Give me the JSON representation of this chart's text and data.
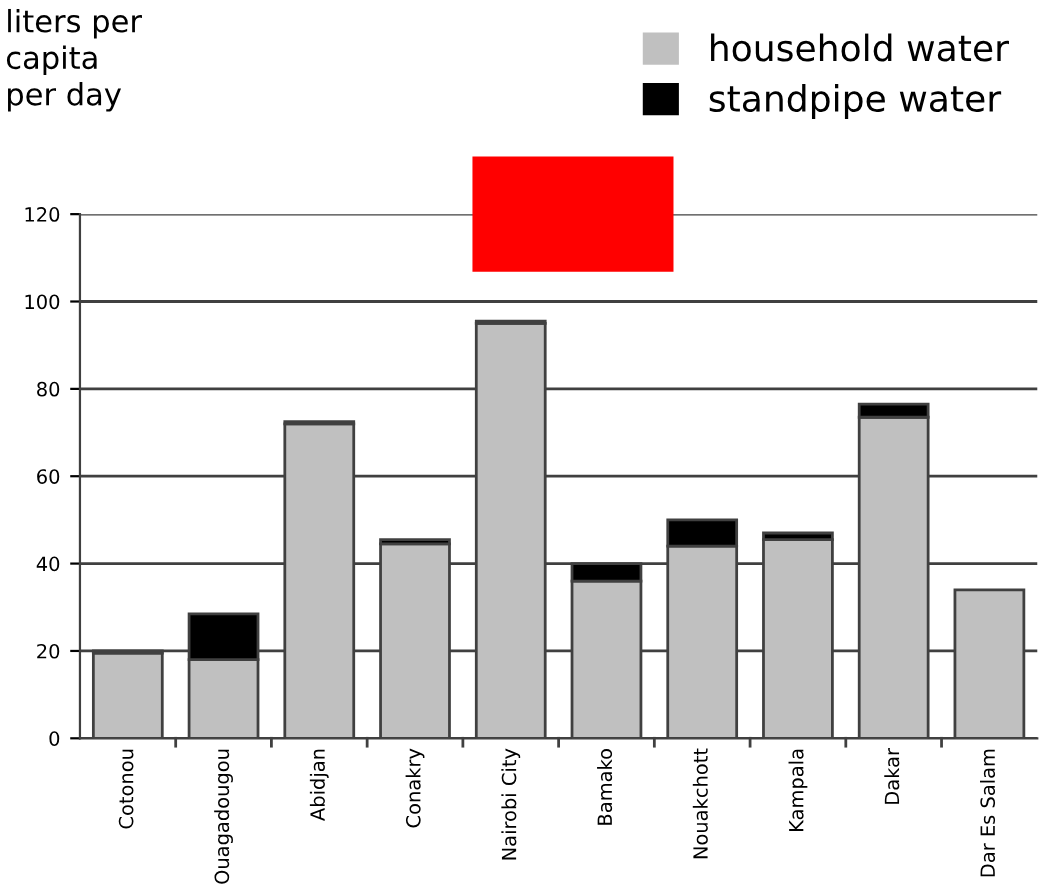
{
  "chart_data": {
    "type": "bar",
    "ylabel": "liters per\ncapita\nper day",
    "stacked": true,
    "categories": [
      "Cotonou",
      "Ouagadougou",
      "Abidjan",
      "Conakry",
      "Nairobi City",
      "Bamako",
      "Nouakchott",
      "Kampala",
      "Dakar",
      "Dar Es Salam"
    ],
    "series": [
      {
        "name": "household water",
        "color": "#c0c0c0",
        "values": [
          19.5,
          18,
          72,
          44.5,
          95,
          36,
          44,
          45.5,
          73.5,
          34
        ]
      },
      {
        "name": "standpipe water",
        "color": "#000000",
        "values": [
          0.5,
          10.5,
          0.5,
          1,
          0.5,
          4,
          6,
          1.5,
          3,
          0
        ]
      }
    ],
    "ylim": [
      0,
      120
    ],
    "yticks": [
      0,
      20,
      40,
      60,
      80,
      100,
      120
    ],
    "grid": "y",
    "legend": "top right"
  }
}
